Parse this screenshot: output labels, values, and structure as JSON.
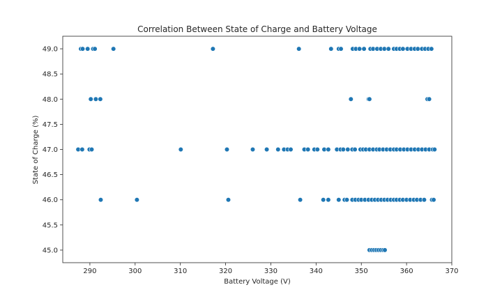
{
  "chart_data": {
    "type": "scatter",
    "title": "Correlation Between State of Charge and Battery Voltage",
    "xlabel": "Battery Voltage (V)",
    "ylabel": "State of Charge (%)",
    "xlim": [
      284,
      370
    ],
    "ylim": [
      44.75,
      49.25
    ],
    "xticks": [
      290,
      300,
      310,
      320,
      330,
      340,
      350,
      360,
      370
    ],
    "yticks": [
      45.0,
      45.5,
      46.0,
      46.5,
      47.0,
      47.5,
      48.0,
      48.5,
      49.0
    ],
    "ytick_labels": [
      "45.0",
      "45.5",
      "46.0",
      "46.5",
      "47.0",
      "47.5",
      "48.0",
      "48.5",
      "49.0"
    ],
    "grid": false,
    "marker_color": "#1f77b4",
    "points": [
      [
        288.0,
        49
      ],
      [
        288.4,
        49
      ],
      [
        289.5,
        49
      ],
      [
        290.7,
        49
      ],
      [
        291.1,
        49
      ],
      [
        295.2,
        49
      ],
      [
        317.2,
        49
      ],
      [
        336.2,
        49
      ],
      [
        343.3,
        49
      ],
      [
        345.0,
        49
      ],
      [
        345.5,
        49
      ],
      [
        348.1,
        49
      ],
      [
        348.8,
        49
      ],
      [
        349.6,
        49
      ],
      [
        350.6,
        49
      ],
      [
        352.0,
        49
      ],
      [
        352.6,
        49
      ],
      [
        353.5,
        49
      ],
      [
        354.3,
        49
      ],
      [
        355.1,
        49
      ],
      [
        356.0,
        49
      ],
      [
        357.2,
        49
      ],
      [
        357.8,
        49
      ],
      [
        358.5,
        49
      ],
      [
        359.2,
        49
      ],
      [
        360.2,
        49
      ],
      [
        361.0,
        49
      ],
      [
        361.8,
        49
      ],
      [
        362.5,
        49
      ],
      [
        363.4,
        49
      ],
      [
        364.1,
        49
      ],
      [
        364.8,
        49
      ],
      [
        365.5,
        49
      ],
      [
        290.2,
        48
      ],
      [
        291.3,
        48
      ],
      [
        292.3,
        48
      ],
      [
        347.7,
        48
      ],
      [
        351.6,
        48
      ],
      [
        351.8,
        48
      ],
      [
        364.6,
        48
      ],
      [
        365.0,
        48
      ],
      [
        287.4,
        47
      ],
      [
        288.3,
        47
      ],
      [
        289.9,
        47
      ],
      [
        290.4,
        47
      ],
      [
        310.1,
        47
      ],
      [
        320.3,
        47
      ],
      [
        326.0,
        47
      ],
      [
        329.1,
        47
      ],
      [
        331.6,
        47
      ],
      [
        332.9,
        47
      ],
      [
        333.7,
        47
      ],
      [
        334.4,
        47
      ],
      [
        337.4,
        47
      ],
      [
        338.2,
        47
      ],
      [
        339.6,
        47
      ],
      [
        340.3,
        47
      ],
      [
        341.8,
        47
      ],
      [
        342.7,
        47
      ],
      [
        344.6,
        47
      ],
      [
        345.4,
        47
      ],
      [
        346.0,
        47
      ],
      [
        347.0,
        47
      ],
      [
        348.0,
        47
      ],
      [
        348.6,
        47
      ],
      [
        349.8,
        47
      ],
      [
        350.4,
        47
      ],
      [
        351.0,
        47
      ],
      [
        351.8,
        47
      ],
      [
        352.6,
        47
      ],
      [
        353.4,
        47
      ],
      [
        354.0,
        47
      ],
      [
        354.8,
        47
      ],
      [
        355.6,
        47
      ],
      [
        356.4,
        47
      ],
      [
        357.2,
        47
      ],
      [
        357.8,
        47
      ],
      [
        358.6,
        47
      ],
      [
        359.4,
        47
      ],
      [
        360.2,
        47
      ],
      [
        361.0,
        47
      ],
      [
        361.8,
        47
      ],
      [
        362.6,
        47
      ],
      [
        363.4,
        47
      ],
      [
        364.2,
        47
      ],
      [
        365.0,
        47
      ],
      [
        365.8,
        47
      ],
      [
        366.2,
        47
      ],
      [
        292.4,
        46
      ],
      [
        300.4,
        46
      ],
      [
        320.6,
        46
      ],
      [
        336.5,
        46
      ],
      [
        341.6,
        46
      ],
      [
        342.7,
        46
      ],
      [
        345.0,
        46
      ],
      [
        346.3,
        46
      ],
      [
        346.8,
        46
      ],
      [
        348.0,
        46
      ],
      [
        348.7,
        46
      ],
      [
        349.4,
        46
      ],
      [
        350.0,
        46
      ],
      [
        350.8,
        46
      ],
      [
        351.6,
        46
      ],
      [
        352.3,
        46
      ],
      [
        353.0,
        46
      ],
      [
        353.7,
        46
      ],
      [
        354.4,
        46
      ],
      [
        355.1,
        46
      ],
      [
        355.8,
        46
      ],
      [
        356.5,
        46
      ],
      [
        357.2,
        46
      ],
      [
        357.8,
        46
      ],
      [
        358.5,
        46
      ],
      [
        359.2,
        46
      ],
      [
        360.0,
        46
      ],
      [
        360.8,
        46
      ],
      [
        361.6,
        46
      ],
      [
        362.3,
        46
      ],
      [
        363.1,
        46
      ],
      [
        363.9,
        46
      ],
      [
        365.6,
        46
      ],
      [
        366.0,
        46
      ],
      [
        351.8,
        45
      ],
      [
        352.3,
        45
      ],
      [
        352.8,
        45
      ],
      [
        353.3,
        45
      ],
      [
        353.8,
        45
      ],
      [
        354.3,
        45
      ],
      [
        354.8,
        45
      ],
      [
        355.2,
        45
      ]
    ]
  }
}
